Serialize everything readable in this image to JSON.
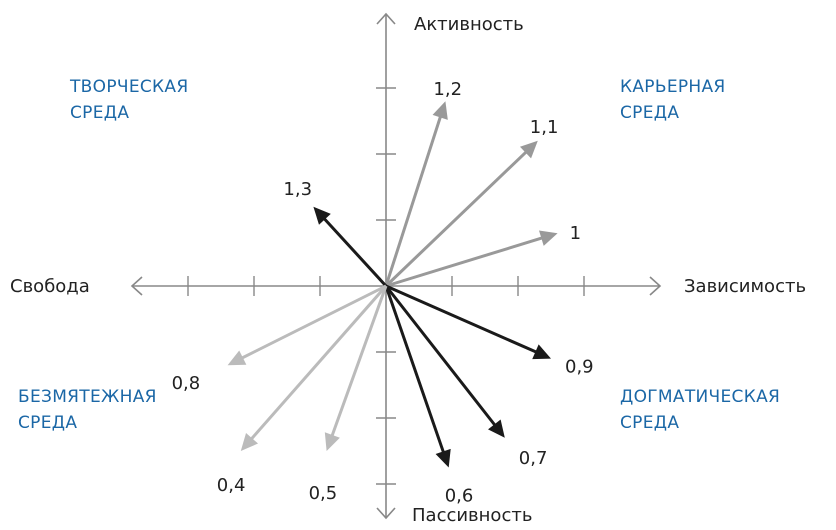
{
  "axes": {
    "top": "Активность",
    "bottom": "Пассивность",
    "left": "Свобода",
    "right": "Зависимость"
  },
  "quadrants": {
    "top_left": [
      "ТВОРЧЕСКАЯ",
      "СРЕДА"
    ],
    "top_right": [
      "КАРЬЕРНАЯ",
      "СРЕДА"
    ],
    "bottom_left": [
      "БЕЗМЯТЕЖНАЯ",
      "СРЕДА"
    ],
    "bottom_right": [
      "ДОГМАТИЧЕСКАЯ",
      "СРЕДА"
    ]
  },
  "colors": {
    "axis": "#888888",
    "quadrant_text": "#1b67a6",
    "label_text": "#222222"
  },
  "vectors": [
    {
      "label": "1,2",
      "x": 0.9,
      "y": 2.8,
      "color": "#999999"
    },
    {
      "label": "1,1",
      "x": 2.3,
      "y": 2.2,
      "color": "#999999"
    },
    {
      "label": "1",
      "x": 2.6,
      "y": 0.8,
      "color": "#999999"
    },
    {
      "label": "1,3",
      "x": -1.1,
      "y": 1.2,
      "color": "#1a1a1a"
    },
    {
      "label": "0,9",
      "x": 2.5,
      "y": -1.1,
      "color": "#1a1a1a"
    },
    {
      "label": "0,7",
      "x": 1.8,
      "y": -2.3,
      "color": "#1a1a1a"
    },
    {
      "label": "0,6",
      "x": 0.95,
      "y": -2.75,
      "color": "#1a1a1a"
    },
    {
      "label": "0,8",
      "x": -2.4,
      "y": -1.2,
      "color": "#bbbbbb"
    },
    {
      "label": "0,4",
      "x": -2.2,
      "y": -2.5,
      "color": "#bbbbbb"
    },
    {
      "label": "0,5",
      "x": -0.9,
      "y": -2.5,
      "color": "#bbbbbb"
    }
  ]
}
